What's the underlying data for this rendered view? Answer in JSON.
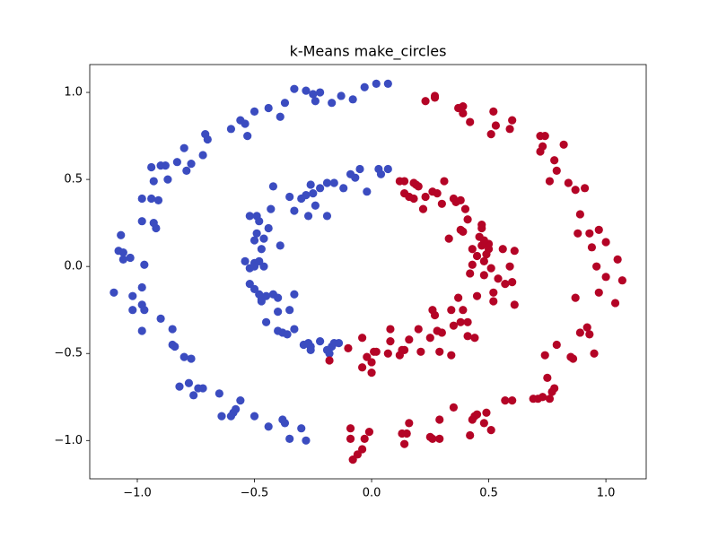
{
  "chart_data": {
    "type": "scatter",
    "title": "k-Means make_circles",
    "xlim": [
      -1.203,
      1.172
    ],
    "ylim": [
      -1.22,
      1.16
    ],
    "xticks": [
      {
        "value": -1.0,
        "label": "−1.0"
      },
      {
        "value": -0.5,
        "label": "−0.5"
      },
      {
        "value": 0.0,
        "label": "0.0"
      },
      {
        "value": 0.5,
        "label": "0.5"
      },
      {
        "value": 1.0,
        "label": "1.0"
      }
    ],
    "yticks": [
      {
        "value": -1.0,
        "label": "−1.0"
      },
      {
        "value": -0.5,
        "label": "−0.5"
      },
      {
        "value": 0.0,
        "label": "0.0"
      },
      {
        "value": 0.5,
        "label": "0.5"
      },
      {
        "value": 1.0,
        "label": "1.0"
      }
    ],
    "grid": false,
    "series": [
      {
        "color": "#3b4cc0",
        "x": [
          0.07,
          0.02,
          -0.03,
          -0.08,
          -0.13,
          -0.17,
          -0.22,
          -0.25,
          -0.28,
          -0.33,
          -0.24,
          -0.37,
          -0.39,
          -0.44,
          -0.5,
          -0.54,
          -0.56,
          -0.53,
          -0.6,
          -0.71,
          -0.7,
          -0.8,
          -0.72,
          -0.77,
          -0.83,
          -0.88,
          -0.94,
          -0.9,
          -0.79,
          -0.87,
          -0.93,
          -0.98,
          -0.94,
          -0.91,
          -0.98,
          -0.93,
          -0.92,
          -1.07,
          -1.06,
          -1.08,
          -1.03,
          -1.06,
          -0.97,
          -1.1,
          -1.02,
          -0.98,
          -0.98,
          -0.97,
          -1.02,
          -0.9,
          -0.98,
          -0.85,
          -0.85,
          -0.84,
          -0.8,
          -0.77,
          -0.72,
          -0.74,
          -0.78,
          -0.82,
          -0.76,
          -0.65,
          -0.56,
          -0.58,
          -0.59,
          -0.6,
          -0.64,
          -0.5,
          -0.44,
          -0.38,
          -0.37,
          -0.35,
          -0.3,
          -0.28,
          0.07,
          0.03,
          -0.05,
          0.04,
          -0.07,
          -0.09,
          -0.16,
          -0.19,
          -0.12,
          -0.02,
          -0.22,
          -0.26,
          -0.28,
          -0.25,
          -0.24,
          -0.3,
          -0.33,
          -0.35,
          -0.42,
          -0.19,
          -0.27,
          -0.43,
          -0.49,
          -0.52,
          -0.48,
          -0.49,
          -0.44,
          -0.46,
          -0.5,
          -0.47,
          -0.39,
          -0.5,
          -0.54,
          -0.48,
          -0.5,
          -0.52,
          -0.46,
          -0.52,
          -0.5,
          -0.48,
          -0.47,
          -0.45,
          -0.47,
          -0.42,
          -0.4,
          -0.33,
          -0.4,
          -0.35,
          -0.45,
          -0.4,
          -0.38,
          -0.36,
          -0.33,
          -0.29,
          -0.22,
          -0.26,
          -0.26,
          -0.17,
          -0.16,
          -0.14,
          -0.18,
          -0.19,
          -0.27
        ],
        "values": [
          1.05,
          1.05,
          1.03,
          0.96,
          0.98,
          0.94,
          1.0,
          0.99,
          1.01,
          1.02,
          0.95,
          0.94,
          0.86,
          0.91,
          0.89,
          0.82,
          0.84,
          0.75,
          0.79,
          0.76,
          0.73,
          0.68,
          0.64,
          0.59,
          0.6,
          0.58,
          0.57,
          0.58,
          0.55,
          0.5,
          0.49,
          0.39,
          0.39,
          0.38,
          0.26,
          0.25,
          0.22,
          0.18,
          0.08,
          0.09,
          0.05,
          0.04,
          0.01,
          -0.15,
          -0.17,
          -0.12,
          -0.22,
          -0.25,
          -0.25,
          -0.3,
          -0.37,
          -0.36,
          -0.45,
          -0.46,
          -0.52,
          -0.53,
          -0.7,
          -0.7,
          -0.67,
          -0.69,
          -0.74,
          -0.73,
          -0.77,
          -0.82,
          -0.84,
          -0.86,
          -0.86,
          -0.86,
          -0.92,
          -0.88,
          -0.9,
          -0.99,
          -0.93,
          -1.0,
          0.56,
          0.56,
          0.56,
          0.53,
          0.51,
          0.53,
          0.48,
          0.48,
          0.45,
          0.43,
          0.45,
          0.47,
          0.41,
          0.42,
          0.35,
          0.39,
          0.32,
          0.4,
          0.46,
          0.29,
          0.29,
          0.33,
          0.29,
          0.29,
          0.26,
          0.19,
          0.22,
          0.16,
          0.15,
          0.1,
          0.12,
          0.02,
          0.03,
          0.03,
          0.0,
          -0.01,
          0.0,
          -0.1,
          -0.13,
          -0.16,
          -0.19,
          -0.17,
          -0.2,
          -0.16,
          -0.18,
          -0.16,
          -0.26,
          -0.25,
          -0.32,
          -0.37,
          -0.38,
          -0.39,
          -0.36,
          -0.45,
          -0.43,
          -0.46,
          -0.48,
          -0.46,
          -0.44,
          -0.44,
          -0.5,
          -0.48,
          -0.44
        ]
      },
      {
        "color": "#b40426",
        "x": [
          0.23,
          0.27,
          0.27,
          0.37,
          0.39,
          0.39,
          0.42,
          0.52,
          0.51,
          0.53,
          0.6,
          0.59,
          0.72,
          0.74,
          0.72,
          0.73,
          0.82,
          0.78,
          0.79,
          0.76,
          0.84,
          0.87,
          0.91,
          0.89,
          0.88,
          0.93,
          0.97,
          1.0,
          0.94,
          1.05,
          0.96,
          1.07,
          1.0,
          0.97,
          1.04,
          0.87,
          0.92,
          0.89,
          0.93,
          0.95,
          0.85,
          0.86,
          0.79,
          0.74,
          0.77,
          0.78,
          0.76,
          0.73,
          0.71,
          0.69,
          0.75,
          0.6,
          0.57,
          0.49,
          0.45,
          0.44,
          0.43,
          0.48,
          0.51,
          0.42,
          0.35,
          0.29,
          0.25,
          0.29,
          0.26,
          0.16,
          0.15,
          0.13,
          0.14,
          -0.01,
          -0.03,
          -0.04,
          -0.09,
          -0.09,
          -0.08,
          -0.06,
          0.12,
          0.14,
          0.18,
          0.2,
          0.19,
          0.26,
          0.28,
          0.23,
          0.14,
          0.16,
          0.18,
          0.22,
          0.3,
          0.35,
          0.36,
          0.38,
          0.31,
          0.4,
          0.41,
          0.47,
          0.47,
          0.39,
          0.38,
          0.33,
          0.43,
          0.46,
          0.47,
          0.5,
          0.48,
          0.5,
          0.49,
          0.45,
          0.43,
          0.48,
          0.51,
          0.48,
          0.42,
          0.61,
          0.56,
          0.59,
          0.54,
          0.57,
          0.6,
          0.52,
          0.45,
          0.52,
          0.61,
          0.37,
          0.34,
          0.39,
          0.38,
          0.41,
          0.35,
          0.26,
          0.27,
          0.28,
          0.25,
          0.3,
          0.41,
          0.44,
          0.21,
          0.29,
          0.34,
          0.14,
          0.12,
          0.07,
          0.08,
          0.02,
          0.0,
          0.01,
          -0.02,
          -0.04,
          -0.1,
          -0.04,
          0.0,
          -0.18,
          0.08,
          0.16,
          0.2,
          0.13
        ],
        "values": [
          0.95,
          0.97,
          0.98,
          0.91,
          0.92,
          0.88,
          0.83,
          0.89,
          0.76,
          0.81,
          0.84,
          0.79,
          0.75,
          0.75,
          0.66,
          0.69,
          0.7,
          0.61,
          0.55,
          0.49,
          0.48,
          0.44,
          0.45,
          0.3,
          0.19,
          0.19,
          0.21,
          0.14,
          0.11,
          0.04,
          0.0,
          -0.08,
          -0.06,
          -0.15,
          -0.21,
          -0.18,
          -0.35,
          -0.38,
          -0.39,
          -0.5,
          -0.52,
          -0.53,
          -0.45,
          -0.51,
          -0.72,
          -0.7,
          -0.76,
          -0.75,
          -0.76,
          -0.76,
          -0.64,
          -0.77,
          -0.77,
          -0.84,
          -0.85,
          -0.86,
          -0.88,
          -0.9,
          -0.94,
          -0.97,
          -0.81,
          -0.88,
          -0.98,
          -0.99,
          -0.99,
          -0.9,
          -0.96,
          -0.96,
          -1.02,
          -0.95,
          -0.99,
          -1.05,
          -0.93,
          -0.99,
          -1.11,
          -1.08,
          0.49,
          0.49,
          0.48,
          0.46,
          0.47,
          0.43,
          0.42,
          0.4,
          0.42,
          0.4,
          0.39,
          0.33,
          0.36,
          0.39,
          0.37,
          0.38,
          0.49,
          0.33,
          0.27,
          0.22,
          0.24,
          0.2,
          0.21,
          0.16,
          0.1,
          0.17,
          0.12,
          0.13,
          0.15,
          0.1,
          0.07,
          0.06,
          0.01,
          0.03,
          -0.01,
          -0.05,
          -0.04,
          0.09,
          0.1,
          0.0,
          -0.07,
          -0.1,
          -0.09,
          -0.15,
          -0.17,
          -0.2,
          -0.22,
          -0.18,
          -0.25,
          -0.25,
          -0.32,
          -0.32,
          -0.34,
          -0.25,
          -0.28,
          -0.37,
          -0.41,
          -0.38,
          -0.4,
          -0.41,
          -0.49,
          -0.49,
          -0.51,
          -0.48,
          -0.51,
          -0.5,
          -0.43,
          -0.49,
          -0.55,
          -0.49,
          -0.52,
          -0.41,
          -0.47,
          -0.58,
          -0.61,
          -0.54,
          -0.36,
          -0.42,
          -0.36,
          -0.48
        ]
      }
    ]
  }
}
